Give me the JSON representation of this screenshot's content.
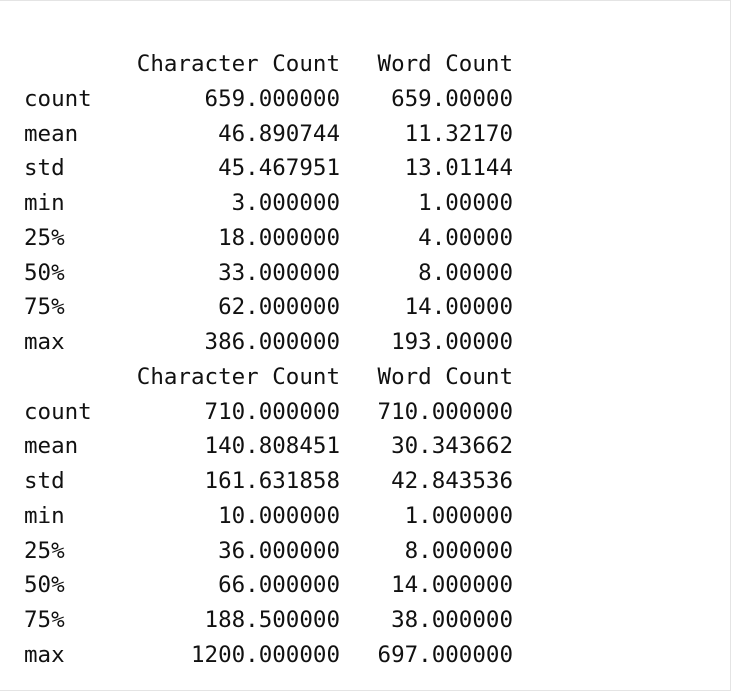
{
  "tables": [
    {
      "headers": [
        "",
        "Character Count",
        "Word Count"
      ],
      "rows": [
        [
          "count",
          "659.000000",
          "659.00000"
        ],
        [
          "mean",
          "46.890744",
          "11.32170"
        ],
        [
          "std",
          "45.467951",
          "13.01144"
        ],
        [
          "min",
          "3.000000",
          "1.00000"
        ],
        [
          "25%",
          "18.000000",
          "4.00000"
        ],
        [
          "50%",
          "33.000000",
          "8.00000"
        ],
        [
          "75%",
          "62.000000",
          "14.00000"
        ],
        [
          "max",
          "386.000000",
          "193.00000"
        ]
      ]
    },
    {
      "headers": [
        "",
        "Character Count",
        "Word Count"
      ],
      "rows": [
        [
          "count",
          "710.000000",
          "710.000000"
        ],
        [
          "mean",
          "140.808451",
          "30.343662"
        ],
        [
          "std",
          "161.631858",
          "42.843536"
        ],
        [
          "min",
          "10.000000",
          "1.000000"
        ],
        [
          "25%",
          "36.000000",
          "8.000000"
        ],
        [
          "50%",
          "66.000000",
          "14.000000"
        ],
        [
          "75%",
          "188.500000",
          "38.000000"
        ],
        [
          "max",
          "1200.000000",
          "697.000000"
        ]
      ]
    }
  ]
}
